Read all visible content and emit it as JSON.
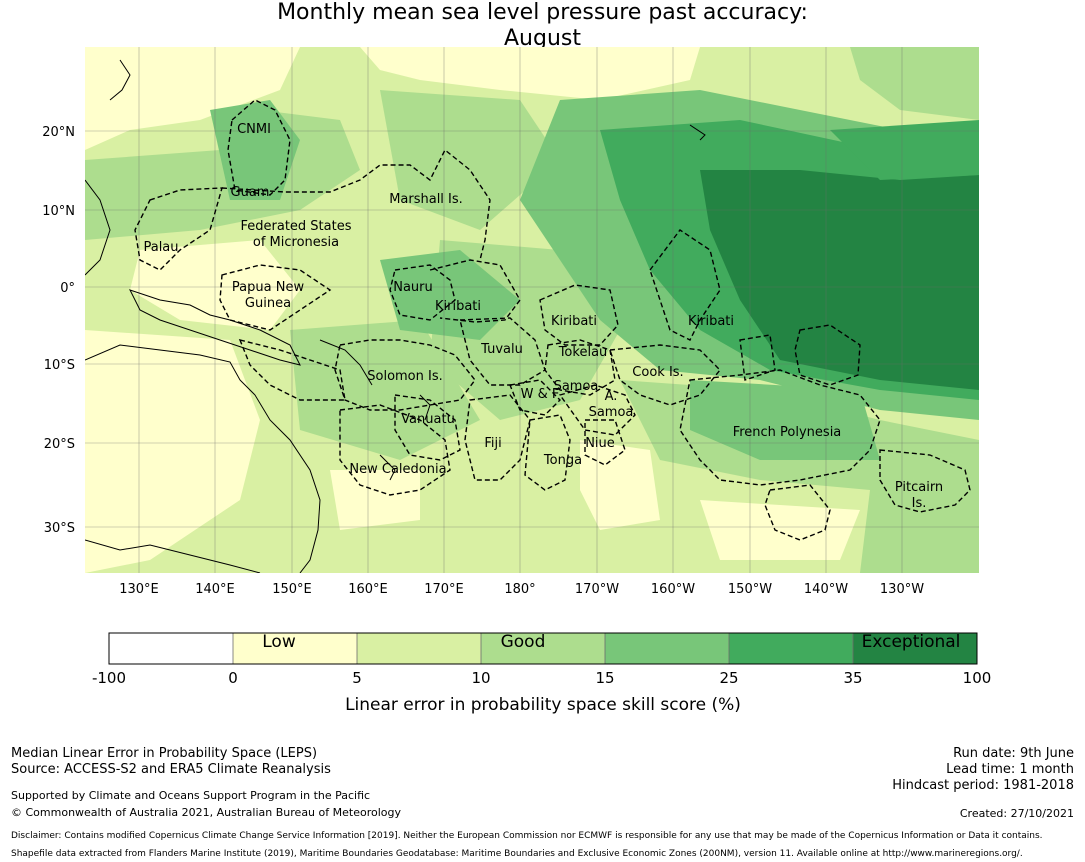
{
  "title_line1": "Monthly mean sea level pressure past accuracy:",
  "title_line2": "August",
  "map": {
    "lat_ticks": [
      "20°N",
      "10°N",
      "0°",
      "10°S",
      "20°S",
      "30°S"
    ],
    "lon_ticks": [
      "130°E",
      "140°E",
      "150°E",
      "160°E",
      "170°E",
      "180°",
      "170°W",
      "160°W",
      "150°W",
      "140°W",
      "130°W"
    ],
    "regions": [
      "CNMI",
      "Guam",
      "Marshall Is.",
      "Federated States",
      "of Micronesia",
      "Palau",
      "Papua New",
      "Guinea",
      "Nauru",
      "Kiribati",
      "Kiribati",
      "Kiribati",
      "Tuvalu",
      "Tokelau",
      "Solomon Is.",
      "Samoa",
      "W & F",
      "A.",
      "Samoa",
      "Cook Is.",
      "Vanuatu",
      "Fiji",
      "Niue",
      "Tonga",
      "New Caledonia",
      "French Polynesia",
      "Pitcairn",
      "Is."
    ]
  },
  "colorbar": {
    "ticks": [
      "-100",
      "0",
      "5",
      "10",
      "15",
      "25",
      "35",
      "100"
    ],
    "bands": [
      "#ffffff",
      "#ffffcc",
      "#d9f0a3",
      "#addd8e",
      "#78c679",
      "#41ab5d",
      "#238443"
    ],
    "category_labels": [
      "Low",
      "Good",
      "Exceptional"
    ],
    "label": "Linear error in probability space skill score (%)"
  },
  "footer": {
    "left1": "Median Linear Error in Probability Space (LEPS)",
    "left2": "Source: ACCESS-S2 and ERA5 Climate Reanalysis",
    "left3": "Supported by Climate and Oceans Support Program in the Pacific",
    "left4": "© Commonwealth of Australia 2021, Australian Bureau of Meteorology",
    "right1": "Run date: 9th June",
    "right2": "Lead time: 1 month",
    "right3": "Hindcast period: 1981-2018",
    "right4": "Created: 27/10/2021",
    "disclaimer1": "Disclaimer: Contains modified Copernicus Climate Change Service Information [2019]. Neither the European Commission nor ECMWF is responsible for any use that may be made of the Copernicus Information or Data it contains.",
    "disclaimer2": "Shapefile data extracted from Flanders Marine Institute (2019), Maritime Boundaries Geodatabase: Maritime Boundaries and Exclusive Economic Zones (200NM), version 11. Available online at http://www.marineregions.org/."
  }
}
